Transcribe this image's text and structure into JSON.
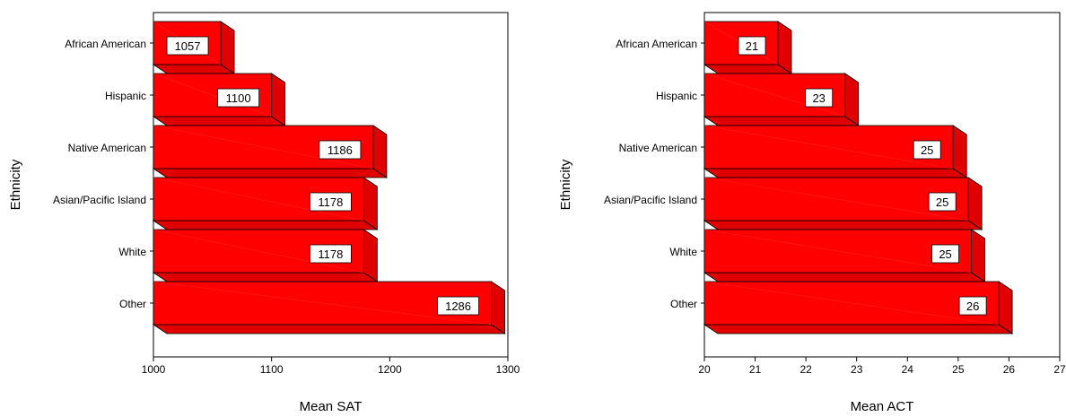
{
  "bar_color": "#ff0000",
  "bar_side_color": "#e00000",
  "bar_top_color": "#ff2a2a",
  "chart_data": [
    {
      "type": "bar",
      "orientation": "horizontal",
      "style": "3d",
      "categories": [
        "African American",
        "Hispanic",
        "Native American",
        "Asian/Pacific Island",
        "White",
        "Other"
      ],
      "values": [
        1057,
        1100,
        1186,
        1178,
        1178,
        1286
      ],
      "data_labels": [
        "1057",
        "1100",
        "1186",
        "1178",
        "1178",
        "1286"
      ],
      "xlabel": "Mean SAT",
      "ylabel": "Ethnicity",
      "xlim": [
        1000,
        1300
      ],
      "xticks": [
        1000,
        1100,
        1200,
        1300
      ],
      "grid": false,
      "legend": "none"
    },
    {
      "type": "bar",
      "orientation": "horizontal",
      "style": "3d",
      "categories": [
        "African American",
        "Hispanic",
        "Native American",
        "Asian/Pacific Island",
        "White",
        "Other"
      ],
      "values": [
        21.45,
        22.77,
        24.9,
        25.2,
        25.26,
        25.8
      ],
      "data_labels": [
        "21",
        "23",
        "25",
        "25",
        "25",
        "26"
      ],
      "xlabel": "Mean ACT",
      "ylabel": "Ethnicity",
      "xlim": [
        20,
        27
      ],
      "xticks": [
        20,
        21,
        22,
        23,
        24,
        25,
        26,
        27
      ],
      "grid": false,
      "legend": "none"
    }
  ]
}
